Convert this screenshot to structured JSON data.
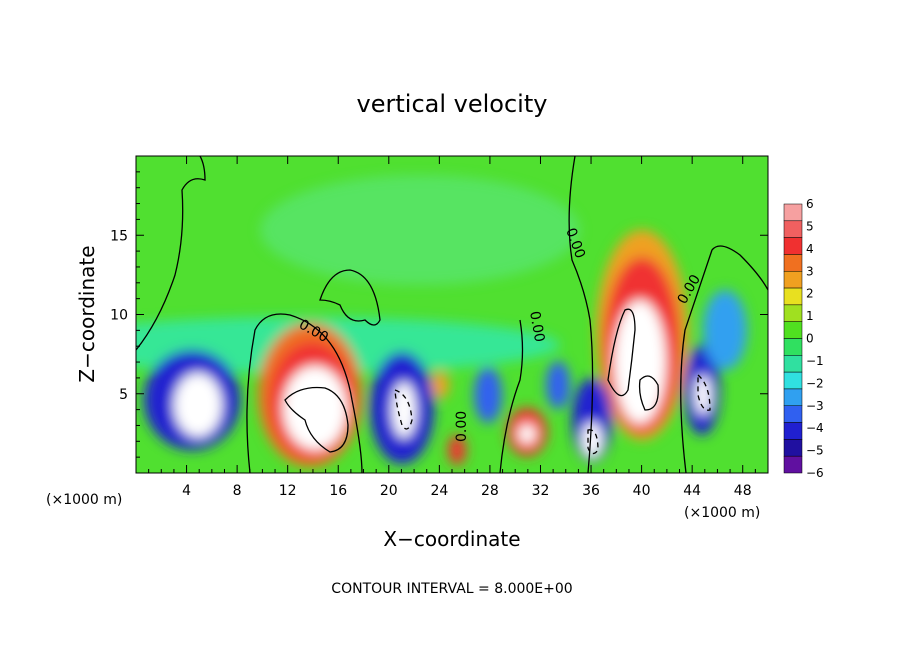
{
  "chart_data": {
    "type": "heatmap",
    "title": "vertical velocity",
    "xlabel": "X−coordinate",
    "ylabel": "Z−coordinate",
    "x_unit_left": "(×1000 m)",
    "x_unit_right": "(×1000 m)",
    "xlim": [
      0,
      50
    ],
    "ylim": [
      0,
      20
    ],
    "x_ticks": [
      4,
      8,
      12,
      16,
      20,
      24,
      28,
      32,
      36,
      40,
      44,
      48
    ],
    "y_ticks": [
      5,
      10,
      15
    ],
    "contour_interval_text": "CONTOUR INTERVAL = 8.000E+00",
    "colorbar": {
      "ticks": [
        "6",
        "5",
        "4",
        "3",
        "2",
        "1",
        "0",
        "−1",
        "−2",
        "−3",
        "−4",
        "−5",
        "−6"
      ],
      "colors": [
        "#f6a0a0",
        "#f06060",
        "#f03030",
        "#f07020",
        "#f0a020",
        "#e8e020",
        "#a0e020",
        "#50e020",
        "#30e060",
        "#30e0a0",
        "#30e0e0",
        "#30a0f0",
        "#3060f0",
        "#2020d0",
        "#2010a0",
        "#6010a0"
      ]
    },
    "features": [
      {
        "name": "updraft-1",
        "x": 14,
        "z": 4.5,
        "value": 6
      },
      {
        "name": "updraft-2",
        "x": 39.5,
        "z": 8,
        "value": 6
      },
      {
        "name": "updraft-3",
        "x": 31,
        "z": 2.5,
        "value": 5
      },
      {
        "name": "updraft-4",
        "x": 25.5,
        "z": 1.5,
        "value": 5
      },
      {
        "name": "downdraft-1",
        "x": 5,
        "z": 5,
        "value": -6
      },
      {
        "name": "downdraft-2",
        "x": 21,
        "z": 4.5,
        "value": -6
      },
      {
        "name": "downdraft-3",
        "x": 36,
        "z": 2.5,
        "value": -6
      },
      {
        "name": "downdraft-4",
        "x": 45.5,
        "z": 5,
        "value": -5
      }
    ]
  }
}
